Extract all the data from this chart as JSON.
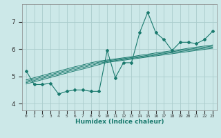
{
  "xlabel": "Humidex (Indice chaleur)",
  "ylabel": "",
  "background_color": "#cce8e8",
  "grid_color": "#aacccc",
  "line_color": "#1a7a6e",
  "x_data": [
    0,
    1,
    2,
    3,
    4,
    5,
    6,
    7,
    8,
    9,
    10,
    11,
    12,
    13,
    14,
    15,
    16,
    17,
    18,
    19,
    20,
    21,
    22,
    23
  ],
  "xlim": [
    -0.5,
    23.5
  ],
  "ylim": [
    3.75,
    7.65
  ],
  "yticks": [
    4,
    5,
    6,
    7
  ],
  "main_line": [
    5.2,
    4.7,
    4.7,
    4.75,
    4.35,
    4.45,
    4.5,
    4.5,
    4.45,
    4.45,
    5.95,
    4.95,
    5.5,
    5.5,
    6.6,
    7.35,
    6.6,
    6.35,
    5.95,
    6.25,
    6.25,
    6.2,
    6.35,
    6.65
  ],
  "reg_lines": [
    [
      4.72,
      4.8,
      4.88,
      4.96,
      5.04,
      5.12,
      5.2,
      5.27,
      5.35,
      5.43,
      5.51,
      5.55,
      5.59,
      5.63,
      5.67,
      5.71,
      5.75,
      5.79,
      5.83,
      5.87,
      5.91,
      5.95,
      5.99,
      6.03
    ],
    [
      4.77,
      4.85,
      4.93,
      5.01,
      5.09,
      5.17,
      5.25,
      5.32,
      5.4,
      5.48,
      5.54,
      5.58,
      5.62,
      5.66,
      5.7,
      5.74,
      5.78,
      5.83,
      5.87,
      5.91,
      5.95,
      5.99,
      6.03,
      6.07
    ],
    [
      4.82,
      4.9,
      4.98,
      5.06,
      5.14,
      5.22,
      5.3,
      5.37,
      5.45,
      5.52,
      5.57,
      5.61,
      5.65,
      5.69,
      5.73,
      5.77,
      5.82,
      5.86,
      5.9,
      5.95,
      5.99,
      6.03,
      6.07,
      6.11
    ],
    [
      4.87,
      4.95,
      5.03,
      5.11,
      5.19,
      5.27,
      5.35,
      5.42,
      5.5,
      5.56,
      5.6,
      5.64,
      5.68,
      5.72,
      5.77,
      5.81,
      5.86,
      5.9,
      5.94,
      5.98,
      6.03,
      6.07,
      6.11,
      6.15
    ]
  ]
}
